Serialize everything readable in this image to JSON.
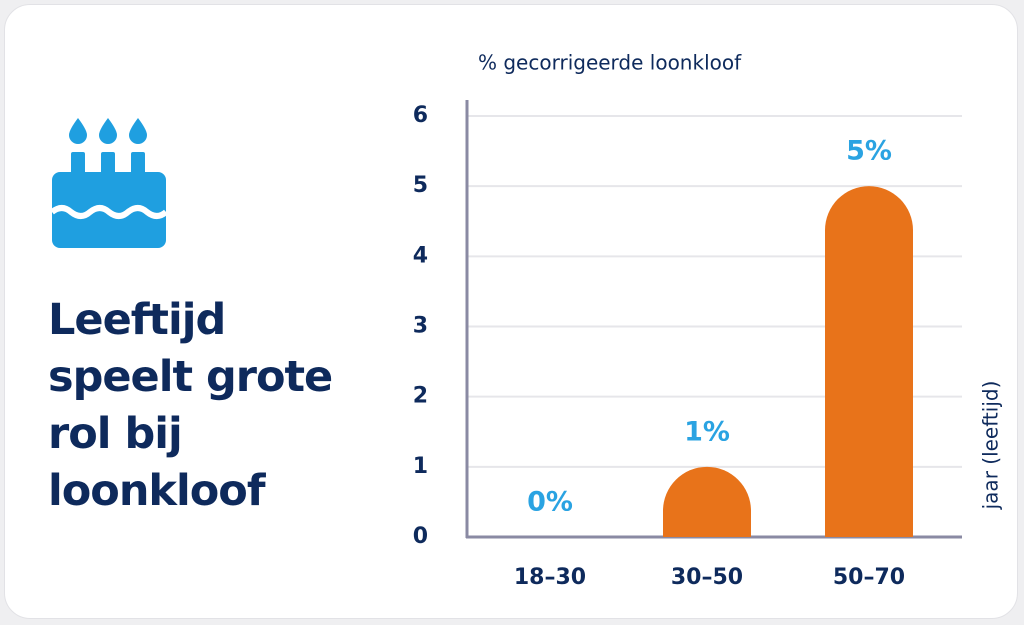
{
  "chart_data": {
    "type": "bar",
    "title": "Leeftijd speelt grote rol bij loonkloof",
    "y_label": "% gecorrigeerde loonkloof",
    "x_label": "jaar (leeftijd)",
    "categories": [
      "18–30",
      "30–50",
      "50–70"
    ],
    "values": [
      0,
      1,
      5
    ],
    "value_labels": [
      "0%",
      "1%",
      "5%"
    ],
    "color": "#e8731a",
    "value_label_color": "#2aa3e2",
    "ylim": [
      0,
      6
    ],
    "yticks": [
      0,
      1,
      2,
      3,
      4,
      5,
      6
    ],
    "grid": true
  }
}
